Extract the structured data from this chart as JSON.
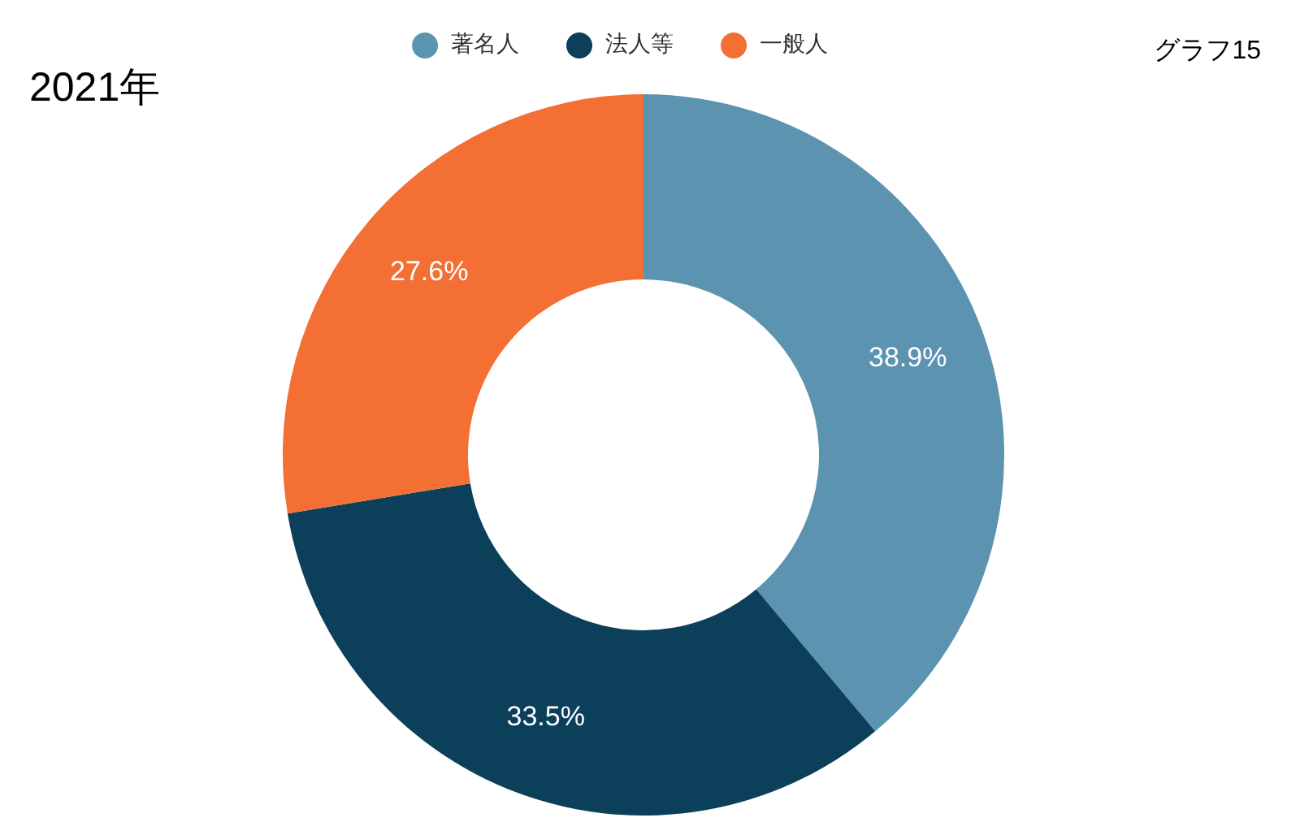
{
  "chart_data": {
    "type": "donut",
    "title": "2021年",
    "annotations": [
      "グラフ15"
    ],
    "categories": [
      "著名人",
      "法人等",
      "一般人"
    ],
    "values": [
      38.9,
      33.5,
      27.6
    ],
    "colors": [
      "#5b93b0",
      "#0b3f5a",
      "#f36f33"
    ],
    "value_labels": [
      "38.9%",
      "33.5%",
      "27.6%"
    ],
    "legend": "top"
  }
}
